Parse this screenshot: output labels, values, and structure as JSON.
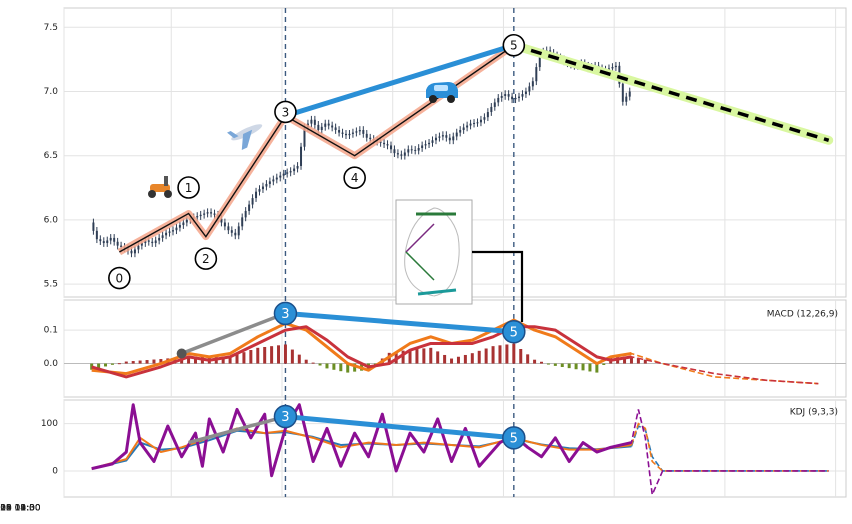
{
  "chart_data": [
    {
      "type": "candlestick",
      "panel": "price",
      "title": "",
      "xlabel": "",
      "ylabel": "",
      "ylim": [
        5.4,
        7.65
      ],
      "yticks": [
        5.5,
        6.0,
        6.5,
        7.0,
        7.5
      ],
      "x_tick_labels": [
        "2019-06-12 09:30",
        "2019-06-24 11:30",
        "2019-07-05 14:00",
        "2019-07-18 09:30",
        "2019-07-30 11:30",
        "2019-08-09 14:00",
        "2019-08-20 12:00"
      ],
      "grid": true,
      "close_series": [
        [
          0,
          5.98
        ],
        [
          2,
          5.85
        ],
        [
          4,
          5.82
        ],
        [
          6,
          5.86
        ],
        [
          8,
          5.8
        ],
        [
          10,
          5.78
        ],
        [
          12,
          5.74
        ],
        [
          14,
          5.8
        ],
        [
          16,
          5.84
        ],
        [
          18,
          5.82
        ],
        [
          20,
          5.86
        ],
        [
          22,
          5.9
        ],
        [
          24,
          5.92
        ],
        [
          26,
          5.96
        ],
        [
          28,
          6.0
        ],
        [
          30,
          6.02
        ],
        [
          32,
          6.04
        ],
        [
          34,
          6.06
        ],
        [
          36,
          6.04
        ],
        [
          38,
          5.98
        ],
        [
          40,
          5.92
        ],
        [
          42,
          5.88
        ],
        [
          44,
          6.02
        ],
        [
          46,
          6.12
        ],
        [
          48,
          6.22
        ],
        [
          50,
          6.26
        ],
        [
          52,
          6.3
        ],
        [
          54,
          6.33
        ],
        [
          56,
          6.36
        ],
        [
          58,
          6.38
        ],
        [
          60,
          6.42
        ],
        [
          62,
          6.72
        ],
        [
          64,
          6.78
        ],
        [
          66,
          6.7
        ],
        [
          68,
          6.75
        ],
        [
          70,
          6.72
        ],
        [
          72,
          6.68
        ],
        [
          74,
          6.66
        ],
        [
          76,
          6.68
        ],
        [
          78,
          6.7
        ],
        [
          80,
          6.64
        ],
        [
          82,
          6.62
        ],
        [
          84,
          6.6
        ],
        [
          86,
          6.58
        ],
        [
          88,
          6.52
        ],
        [
          90,
          6.5
        ],
        [
          92,
          6.55
        ],
        [
          94,
          6.54
        ],
        [
          96,
          6.58
        ],
        [
          98,
          6.6
        ],
        [
          100,
          6.64
        ],
        [
          102,
          6.66
        ],
        [
          104,
          6.62
        ],
        [
          106,
          6.68
        ],
        [
          108,
          6.72
        ],
        [
          110,
          6.75
        ],
        [
          112,
          6.76
        ],
        [
          114,
          6.8
        ],
        [
          116,
          6.88
        ],
        [
          118,
          6.95
        ],
        [
          120,
          6.98
        ],
        [
          122,
          6.94
        ],
        [
          124,
          6.96
        ],
        [
          126,
          7.0
        ],
        [
          128,
          7.08
        ],
        [
          130,
          7.3
        ],
        [
          132,
          7.32
        ],
        [
          134,
          7.28
        ],
        [
          136,
          7.25
        ],
        [
          138,
          7.22
        ],
        [
          140,
          7.2
        ],
        [
          142,
          7.22
        ],
        [
          144,
          7.18
        ],
        [
          146,
          7.2
        ],
        [
          148,
          7.16
        ],
        [
          150,
          7.18
        ],
        [
          152,
          7.2
        ],
        [
          154,
          6.92
        ],
        [
          156,
          7.0
        ]
      ],
      "waves": {
        "points": [
          {
            "label": "0",
            "x": 8,
            "y": 5.75
          },
          {
            "label": "1",
            "x": 28,
            "y": 6.05
          },
          {
            "label": "2",
            "x": 33,
            "y": 5.87
          },
          {
            "label": "3",
            "x": 56,
            "y": 6.81
          },
          {
            "label": "4",
            "x": 76,
            "y": 6.5
          },
          {
            "label": "5",
            "x": 122,
            "y": 7.36
          }
        ],
        "trend_line": [
          {
            "x": 56,
            "y": 6.81
          },
          {
            "x": 122,
            "y": 7.36
          }
        ],
        "projection": [
          {
            "x": 122,
            "y": 7.36
          },
          {
            "x": 213,
            "y": 6.62
          }
        ]
      },
      "vertical_markers_x": [
        56,
        122
      ]
    },
    {
      "type": "line",
      "panel": "macd",
      "label": "MACD (12,26,9)",
      "ylim": [
        -0.1,
        0.19
      ],
      "yticks": [
        0.0,
        0.1
      ],
      "series": [
        {
          "color": "#f07a1a",
          "values": [
            [
              0,
              -0.02
            ],
            [
              10,
              -0.03
            ],
            [
              20,
              0.0
            ],
            [
              28,
              0.03
            ],
            [
              34,
              0.02
            ],
            [
              40,
              0.03
            ],
            [
              48,
              0.08
            ],
            [
              56,
              0.12
            ],
            [
              62,
              0.1
            ],
            [
              68,
              0.05
            ],
            [
              74,
              0.0
            ],
            [
              80,
              -0.02
            ],
            [
              86,
              0.02
            ],
            [
              92,
              0.06
            ],
            [
              98,
              0.08
            ],
            [
              104,
              0.06
            ],
            [
              110,
              0.07
            ],
            [
              116,
              0.1
            ],
            [
              122,
              0.13
            ],
            [
              128,
              0.1
            ],
            [
              134,
              0.08
            ],
            [
              140,
              0.04
            ],
            [
              146,
              0.0
            ],
            [
              150,
              0.02
            ],
            [
              156,
              0.03
            ],
            [
              165,
              0.0
            ],
            [
              180,
              -0.04
            ],
            [
              195,
              -0.05
            ],
            [
              210,
              -0.06
            ]
          ]
        },
        {
          "color": "#c8323c",
          "values": [
            [
              0,
              -0.01
            ],
            [
              10,
              -0.04
            ],
            [
              20,
              -0.01
            ],
            [
              28,
              0.02
            ],
            [
              34,
              0.01
            ],
            [
              40,
              0.02
            ],
            [
              48,
              0.06
            ],
            [
              56,
              0.1
            ],
            [
              62,
              0.11
            ],
            [
              68,
              0.07
            ],
            [
              74,
              0.02
            ],
            [
              80,
              -0.01
            ],
            [
              86,
              0.0
            ],
            [
              92,
              0.04
            ],
            [
              98,
              0.06
            ],
            [
              104,
              0.06
            ],
            [
              110,
              0.06
            ],
            [
              116,
              0.08
            ],
            [
              122,
              0.11
            ],
            [
              128,
              0.11
            ],
            [
              134,
              0.1
            ],
            [
              140,
              0.06
            ],
            [
              146,
              0.02
            ],
            [
              150,
              0.01
            ],
            [
              156,
              0.02
            ],
            [
              165,
              0.0
            ],
            [
              180,
              -0.03
            ],
            [
              195,
              -0.05
            ],
            [
              210,
              -0.06
            ]
          ]
        }
      ],
      "waves": {
        "points": [
          {
            "label": "3",
            "x": 56,
            "y": 0.15
          },
          {
            "label": "5",
            "x": 122,
            "y": 0.095
          }
        ],
        "aux_line": [
          {
            "x": 26,
            "y": 0.03
          },
          {
            "x": 56,
            "y": 0.15
          }
        ]
      }
    },
    {
      "type": "line",
      "panel": "kdj",
      "label": "KDJ (9,3,3)",
      "ylim": [
        -55,
        150
      ],
      "yticks": [
        0,
        100
      ],
      "series": [
        {
          "color": "#8b0f93",
          "values": [
            [
              0,
              5
            ],
            [
              6,
              15
            ],
            [
              10,
              40
            ],
            [
              12,
              140
            ],
            [
              14,
              60
            ],
            [
              18,
              20
            ],
            [
              22,
              95
            ],
            [
              26,
              30
            ],
            [
              30,
              80
            ],
            [
              32,
              10
            ],
            [
              34,
              110
            ],
            [
              38,
              40
            ],
            [
              42,
              130
            ],
            [
              46,
              70
            ],
            [
              50,
              120
            ],
            [
              52,
              -10
            ],
            [
              56,
              90
            ],
            [
              60,
              140
            ],
            [
              64,
              20
            ],
            [
              68,
              90
            ],
            [
              72,
              10
            ],
            [
              76,
              80
            ],
            [
              80,
              30
            ],
            [
              84,
              120
            ],
            [
              88,
              0
            ],
            [
              92,
              80
            ],
            [
              96,
              40
            ],
            [
              100,
              110
            ],
            [
              104,
              20
            ],
            [
              108,
              90
            ],
            [
              112,
              10
            ],
            [
              118,
              60
            ],
            [
              122,
              75
            ],
            [
              126,
              50
            ],
            [
              130,
              30
            ],
            [
              134,
              70
            ],
            [
              138,
              20
            ],
            [
              142,
              60
            ],
            [
              146,
              40
            ],
            [
              150,
              50
            ],
            [
              156,
              60
            ],
            [
              158,
              130
            ],
            [
              160,
              70
            ],
            [
              162,
              -50
            ],
            [
              165,
              0
            ],
            [
              213,
              0
            ]
          ]
        },
        {
          "color": "#f07a1a",
          "values": [
            [
              0,
              5
            ],
            [
              10,
              25
            ],
            [
              14,
              70
            ],
            [
              20,
              40
            ],
            [
              26,
              50
            ],
            [
              34,
              70
            ],
            [
              42,
              90
            ],
            [
              50,
              80
            ],
            [
              56,
              85
            ],
            [
              64,
              70
            ],
            [
              72,
              50
            ],
            [
              80,
              60
            ],
            [
              88,
              55
            ],
            [
              96,
              60
            ],
            [
              104,
              55
            ],
            [
              112,
              50
            ],
            [
              122,
              70
            ],
            [
              130,
              55
            ],
            [
              138,
              45
            ],
            [
              146,
              45
            ],
            [
              156,
              55
            ],
            [
              158,
              100
            ],
            [
              160,
              90
            ],
            [
              162,
              20
            ],
            [
              165,
              0
            ],
            [
              213,
              0
            ]
          ]
        },
        {
          "color": "#2878b5",
          "values": [
            [
              0,
              5
            ],
            [
              10,
              22
            ],
            [
              14,
              60
            ],
            [
              20,
              45
            ],
            [
              26,
              48
            ],
            [
              34,
              65
            ],
            [
              42,
              85
            ],
            [
              50,
              80
            ],
            [
              56,
              82
            ],
            [
              64,
              72
            ],
            [
              72,
              55
            ],
            [
              80,
              58
            ],
            [
              88,
              55
            ],
            [
              96,
              58
            ],
            [
              104,
              55
            ],
            [
              112,
              52
            ],
            [
              122,
              68
            ],
            [
              130,
              56
            ],
            [
              138,
              48
            ],
            [
              146,
              46
            ],
            [
              156,
              52
            ],
            [
              158,
              95
            ],
            [
              160,
              88
            ],
            [
              162,
              30
            ],
            [
              165,
              0
            ],
            [
              213,
              0
            ]
          ]
        }
      ],
      "waves": {
        "points": [
          {
            "label": "3",
            "x": 56,
            "y": 115
          },
          {
            "label": "5",
            "x": 122,
            "y": 70
          }
        ],
        "aux_line": [
          {
            "x": 28,
            "y": 60
          },
          {
            "x": 56,
            "y": 115
          }
        ]
      }
    }
  ],
  "icons": [
    "scooter-icon",
    "airplane-icon",
    "car-icon",
    "circuit-thumbnail-icon"
  ],
  "colors": {
    "wave_line": "#111111",
    "wave_glow": "#f4a58a",
    "trend_line": "#2a8fd6",
    "projection_line": "#000000",
    "projection_glow": "#d9f7a0",
    "macd_pos_bar": "#a83232",
    "macd_neg_bar": "#6b8e23",
    "marker_fill": "#2a8fd6",
    "vline": "#3c5a80",
    "candle": "#2f3e55"
  }
}
